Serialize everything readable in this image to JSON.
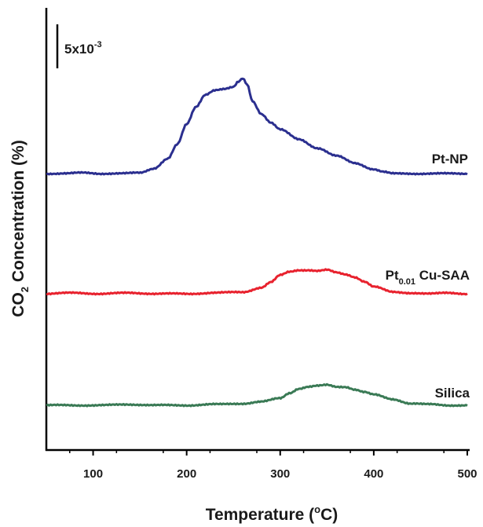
{
  "chart_data": {
    "type": "line",
    "title": "",
    "xlabel": {
      "main": "Temperature (",
      "sup": "o",
      "end": "C)"
    },
    "ylabel": {
      "main": "CO",
      "sub": "2",
      "end": " Concentration (%)"
    },
    "x_ticks": [
      "100",
      "200",
      "300",
      "400",
      "500"
    ],
    "xlim": [
      50,
      500
    ],
    "y_ticks_shown": false,
    "grid": false,
    "scale_bar": {
      "main": "5x10",
      "sup": "-3",
      "value": 0.005
    },
    "series": [
      {
        "name": "Pt-NP",
        "label_parts": {
          "main": "Pt-NP"
        },
        "color": "#2b2f8f",
        "offset": 0.0,
        "x": [
          50,
          70,
          90,
          110,
          130,
          150,
          165,
          180,
          190,
          200,
          210,
          220,
          230,
          240,
          250,
          255,
          260,
          265,
          270,
          280,
          290,
          300,
          320,
          340,
          360,
          380,
          400,
          410,
          420,
          430,
          450,
          470,
          500
        ],
        "y": [
          0.0,
          0.0,
          0.0001,
          0.0,
          0.0,
          0.0001,
          0.0006,
          0.0017,
          0.0033,
          0.0056,
          0.0076,
          0.009,
          0.0095,
          0.0096,
          0.0098,
          0.0104,
          0.0108,
          0.0101,
          0.0083,
          0.0068,
          0.0058,
          0.005,
          0.0039,
          0.0029,
          0.002,
          0.0012,
          0.0005,
          0.0002,
          0.0,
          0.0,
          0.0,
          0.0,
          0.0
        ]
      },
      {
        "name": "Pt0.01 Cu-SAA",
        "label_parts": {
          "main": "Pt",
          "sub": "0.01",
          "end": " Cu-SAA"
        },
        "color": "#e8222e",
        "offset": 0.0,
        "x": [
          50,
          80,
          110,
          140,
          170,
          200,
          230,
          260,
          280,
          290,
          300,
          310,
          320,
          330,
          340,
          350,
          360,
          370,
          380,
          390,
          400,
          420,
          440,
          460,
          480,
          500
        ],
        "y": [
          0.0,
          0.0001,
          0.0,
          0.0001,
          0.0,
          0.0,
          0.0001,
          0.0002,
          0.0007,
          0.0013,
          0.0021,
          0.0025,
          0.0027,
          0.0027,
          0.0026,
          0.0027,
          0.0024,
          0.0022,
          0.0019,
          0.0014,
          0.0008,
          0.0002,
          0.0001,
          0.0,
          0.0001,
          0.0
        ]
      },
      {
        "name": "Silica",
        "label_parts": {
          "main": "Silica"
        },
        "color": "#3a7a55",
        "offset": 0.0,
        "x": [
          50,
          80,
          110,
          140,
          170,
          200,
          230,
          260,
          280,
          300,
          310,
          320,
          330,
          340,
          350,
          360,
          370,
          380,
          390,
          400,
          420,
          440,
          460,
          480,
          500
        ],
        "y": [
          0.0,
          0.0,
          0.0,
          0.0001,
          0.0,
          0.0,
          0.0001,
          0.0002,
          0.0004,
          0.0008,
          0.0014,
          0.0019,
          0.0021,
          0.0022,
          0.0023,
          0.0021,
          0.0021,
          0.0018,
          0.0015,
          0.0012,
          0.0007,
          0.0002,
          0.0001,
          0.0,
          0.0
        ]
      }
    ]
  }
}
